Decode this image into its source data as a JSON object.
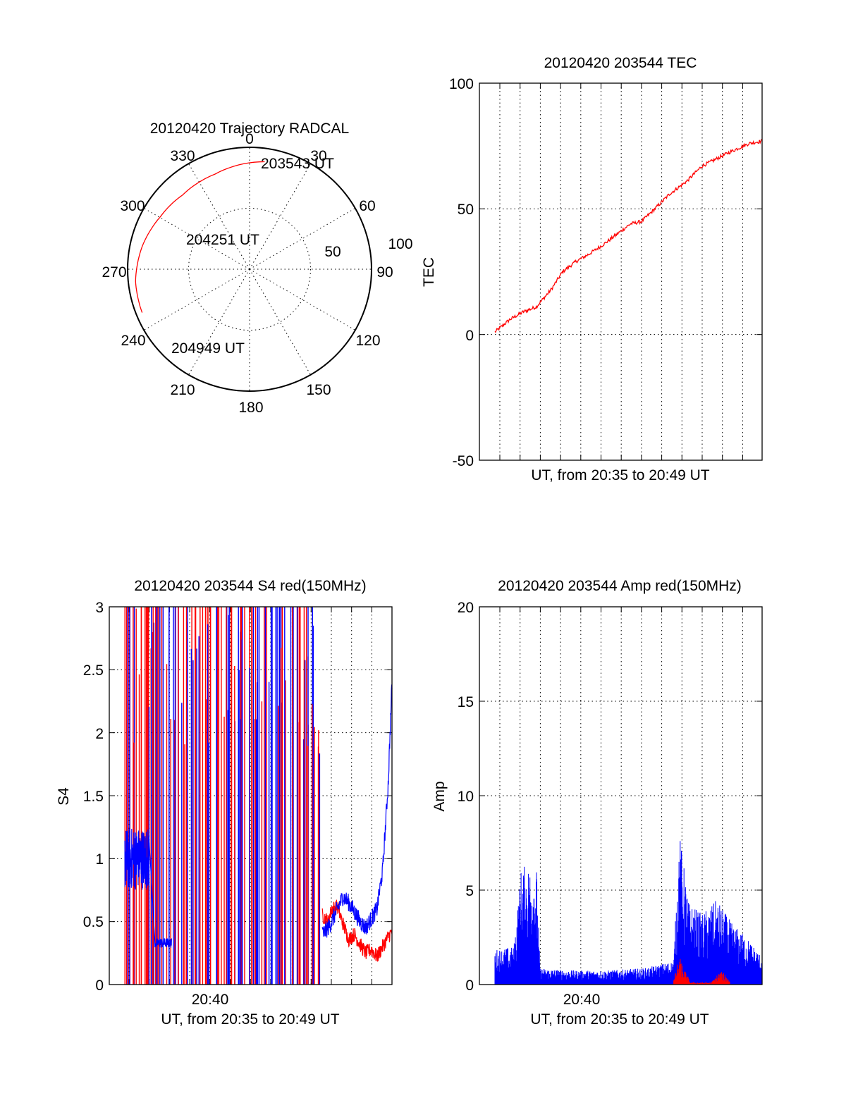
{
  "colors": {
    "red": "#ff0000",
    "blue": "#0000ff",
    "axis": "#000000",
    "background": "#ffffff"
  },
  "chart_data": [
    {
      "type": "polar",
      "title": "20120420 Trajectory RADCAL",
      "angle_labels": [
        "0",
        "30",
        "60",
        "90",
        "120",
        "150",
        "180",
        "210",
        "240",
        "270",
        "300",
        "330"
      ],
      "radial_labels": [
        "50",
        "100"
      ],
      "rlim": [
        0,
        100
      ],
      "grid": true,
      "trajectory": {
        "color": "#ff0000",
        "points": [
          {
            "az": 8,
            "r": 89
          },
          {
            "az": 340,
            "r": 83
          },
          {
            "az": 318,
            "r": 82
          },
          {
            "az": 300,
            "r": 85
          },
          {
            "az": 282,
            "r": 90
          },
          {
            "az": 264,
            "r": 94
          },
          {
            "az": 248,
            "r": 95
          }
        ]
      },
      "annotations": [
        "203543 UT",
        "204251 UT",
        "204949 UT"
      ]
    },
    {
      "type": "line",
      "title": "20120420 203544 TEC",
      "xlabel": "UT, from 20:35 to 20:49 UT",
      "ylabel": "TEC",
      "xlim": [
        0,
        14.2
      ],
      "ylim": [
        -50,
        100
      ],
      "yticks": [
        "-50",
        "0",
        "50",
        "100"
      ],
      "grid": true,
      "series": [
        {
          "color": "#ff0000",
          "x": [
            0,
            0.8,
            1.5,
            2.2,
            3.0,
            3.6,
            4.3,
            5.0,
            5.8,
            6.5,
            7.2,
            7.8,
            8.5,
            9.3,
            10.2,
            11.0,
            11.8,
            12.6,
            13.5,
            14.2
          ],
          "y": [
            1,
            6,
            9,
            11,
            18,
            25,
            29,
            32,
            36,
            40,
            44,
            45,
            50,
            56,
            61,
            67,
            70,
            73,
            76,
            77
          ]
        }
      ]
    },
    {
      "type": "line",
      "title": "20120420 203544 S4 red(150MHz)",
      "xlabel": "UT, from 20:35 to 20:49 UT",
      "ylabel": "S4",
      "xlim": [
        0,
        14.2
      ],
      "ylim": [
        0,
        3
      ],
      "xticks": [
        "20:40"
      ],
      "yticks": [
        "0",
        "0.5",
        "1",
        "1.5",
        "2",
        "2.5",
        "3"
      ],
      "grid": true,
      "series": [
        {
          "color": "#ff0000",
          "x": [
            10.5,
            10.8,
            11.0,
            11.3,
            11.6,
            11.9,
            12.2,
            12.5,
            12.8,
            13.1,
            13.4,
            13.7,
            14.0,
            14.2
          ],
          "y": [
            0.55,
            0.5,
            0.6,
            0.62,
            0.48,
            0.36,
            0.4,
            0.32,
            0.25,
            0.28,
            0.22,
            0.3,
            0.38,
            0.42
          ]
        },
        {
          "color": "#0000ff",
          "x": [
            10.5,
            10.8,
            11.0,
            11.3,
            11.6,
            11.9,
            12.2,
            12.5,
            12.8,
            13.1,
            13.4,
            13.7,
            14.0,
            14.2
          ],
          "y": [
            0.4,
            0.45,
            0.5,
            0.6,
            0.7,
            0.65,
            0.58,
            0.5,
            0.45,
            0.52,
            0.6,
            0.9,
            1.6,
            2.4
          ]
        }
      ]
    },
    {
      "type": "line",
      "title": "20120420 203544 Amp red(150MHz)",
      "xlabel": "UT, from 20:35 to 20:49 UT",
      "ylabel": "Amp",
      "xlim": [
        0,
        14.2
      ],
      "ylim": [
        0,
        20
      ],
      "xticks": [
        "20:40"
      ],
      "yticks": [
        "0",
        "5",
        "10",
        "15",
        "20"
      ],
      "grid": true,
      "series": [
        {
          "color": "#0000ff",
          "x": [
            0,
            1.0,
            1.4,
            2.2,
            2.4,
            4.0,
            6.0,
            8.0,
            9.5,
            9.8,
            10.3,
            11.0,
            11.8,
            12.6,
            13.4,
            14.2
          ],
          "y": [
            1.5,
            1.6,
            5.0,
            5.2,
            0.7,
            0.6,
            0.6,
            0.7,
            1.0,
            6.5,
            3.5,
            3.0,
            3.6,
            2.6,
            2.0,
            1.2
          ]
        },
        {
          "color": "#ff0000",
          "x": [
            9.5,
            9.8,
            10.1,
            10.4,
            11.5,
            12.0,
            12.5
          ],
          "y": [
            0.2,
            1.2,
            0.6,
            0.1,
            0.1,
            0.6,
            0.2
          ]
        }
      ]
    }
  ]
}
